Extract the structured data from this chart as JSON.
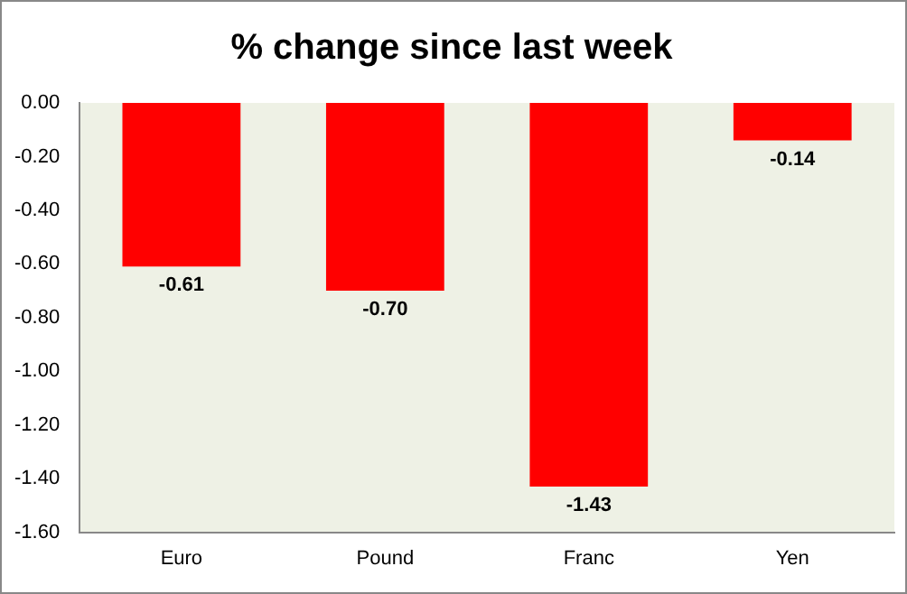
{
  "chart_data": {
    "type": "bar",
    "title": "% change since last week",
    "categories": [
      "Euro",
      "Pound",
      "Franc",
      "Yen"
    ],
    "values": [
      -0.61,
      -0.7,
      -1.43,
      -0.14
    ],
    "value_labels": [
      "-0.61",
      "-0.70",
      "-1.43",
      "-0.14"
    ],
    "color": "#ff0000",
    "ylim": [
      -1.6,
      0
    ],
    "yticks": [
      {
        "value": 0,
        "label": "0.00"
      },
      {
        "value": -0.2,
        "label": "-0.20"
      },
      {
        "value": -0.4,
        "label": "-0.40"
      },
      {
        "value": -0.6,
        "label": "-0.60"
      },
      {
        "value": -0.8,
        "label": "-0.80"
      },
      {
        "value": -1.0,
        "label": "-1.00"
      },
      {
        "value": -1.2,
        "label": "-1.20"
      },
      {
        "value": -1.4,
        "label": "-1.40"
      },
      {
        "value": -1.6,
        "label": "-1.60"
      }
    ],
    "grid": false,
    "legend": false
  }
}
